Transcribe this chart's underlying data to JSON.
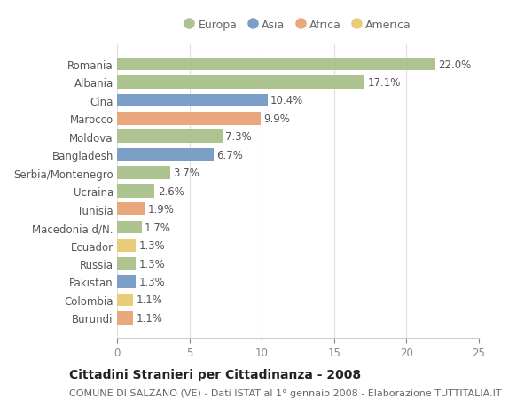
{
  "countries": [
    "Romania",
    "Albania",
    "Cina",
    "Marocco",
    "Moldova",
    "Bangladesh",
    "Serbia/Montenegro",
    "Ucraina",
    "Tunisia",
    "Macedonia d/N.",
    "Ecuador",
    "Russia",
    "Pakistan",
    "Colombia",
    "Burundi"
  ],
  "values": [
    22.0,
    17.1,
    10.4,
    9.9,
    7.3,
    6.7,
    3.7,
    2.6,
    1.9,
    1.7,
    1.3,
    1.3,
    1.3,
    1.1,
    1.1
  ],
  "continents": [
    "Europa",
    "Europa",
    "Asia",
    "Africa",
    "Europa",
    "Asia",
    "Europa",
    "Europa",
    "Africa",
    "Europa",
    "America",
    "Europa",
    "Asia",
    "America",
    "Africa"
  ],
  "continent_colors": {
    "Europa": "#adc491",
    "Asia": "#7b9fc7",
    "Africa": "#e8a87c",
    "America": "#e8cc7a"
  },
  "legend_order": [
    "Europa",
    "Asia",
    "Africa",
    "America"
  ],
  "title": "Cittadini Stranieri per Cittadinanza - 2008",
  "subtitle": "COMUNE DI SALZANO (VE) - Dati ISTAT al 1° gennaio 2008 - Elaborazione TUTTITALIA.IT",
  "xlim": [
    0,
    25
  ],
  "xticks": [
    0,
    5,
    10,
    15,
    20,
    25
  ],
  "bar_height": 0.72,
  "background_color": "#ffffff",
  "grid_color": "#e0e0e0",
  "title_fontsize": 10,
  "subtitle_fontsize": 8,
  "label_fontsize": 8.5,
  "tick_fontsize": 8.5,
  "legend_fontsize": 9
}
